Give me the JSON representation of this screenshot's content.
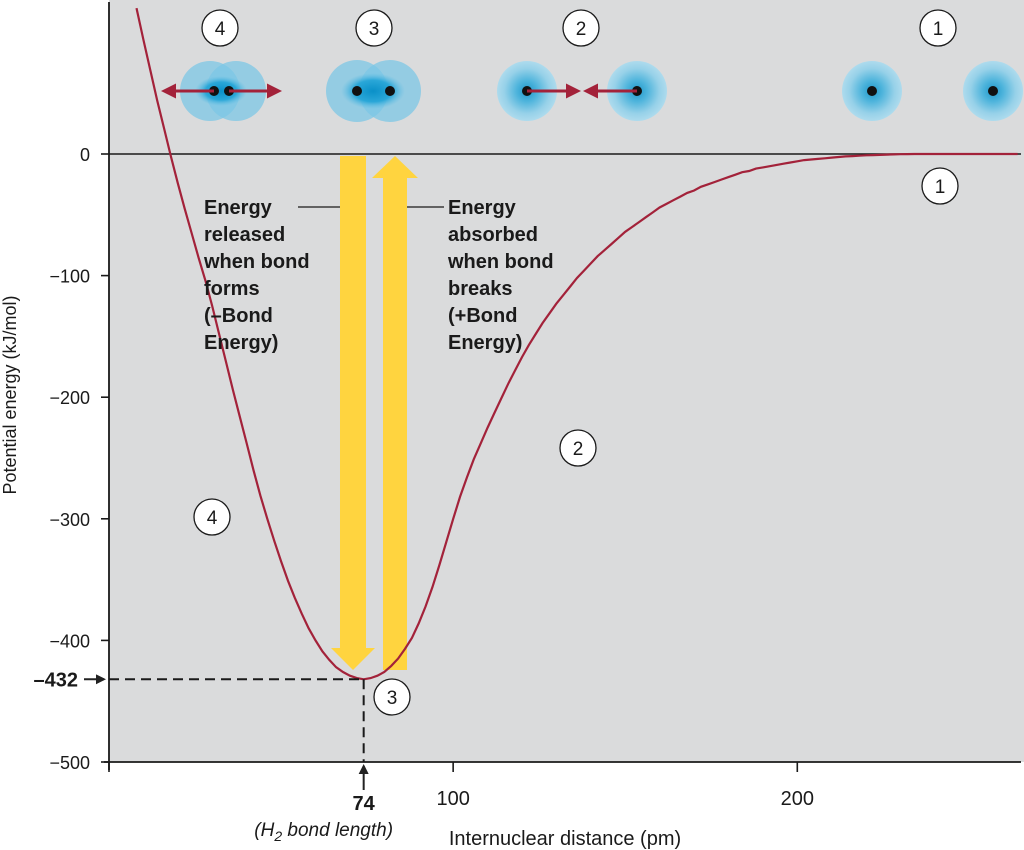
{
  "chart_data": {
    "type": "line",
    "title": "",
    "xlabel": "Internuclear distance (pm)",
    "ylabel": "Potential energy (kJ/mol)",
    "xlim": [
      0,
      265
    ],
    "ylim": [
      -500,
      120
    ],
    "x_ticks": [
      {
        "value": 100,
        "label": "100"
      },
      {
        "value": 200,
        "label": "200"
      }
    ],
    "y_ticks": [
      {
        "value": 0,
        "label": "0"
      },
      {
        "value": -100,
        "label": "−100"
      },
      {
        "value": -200,
        "label": "−200"
      },
      {
        "value": -300,
        "label": "−300"
      },
      {
        "value": -400,
        "label": "−400"
      },
      {
        "value": -500,
        "label": "−500"
      }
    ],
    "series": [
      {
        "color": "#a3223a",
        "x": [
          8,
          10,
          12,
          14,
          16,
          18,
          20,
          22,
          24,
          26,
          28,
          30,
          32,
          34,
          36,
          38,
          40,
          42,
          44,
          46,
          48,
          50,
          52,
          54,
          56,
          58,
          60,
          62,
          64,
          66,
          68,
          70,
          72,
          74,
          76,
          78,
          80,
          82,
          84,
          86,
          88,
          90,
          92,
          94,
          96,
          98,
          100,
          102,
          104,
          106,
          108,
          110,
          112,
          114,
          116,
          118,
          120,
          122,
          124,
          126,
          128,
          130,
          132,
          134,
          136,
          138,
          140,
          142,
          144,
          146,
          148,
          150,
          152,
          154,
          156,
          158,
          160,
          162,
          164,
          166,
          168,
          170,
          172,
          174,
          176,
          178,
          180,
          182,
          184,
          186,
          188,
          190,
          192,
          194,
          196,
          198,
          200,
          202,
          204,
          206,
          208,
          210,
          212,
          214,
          216,
          218,
          220,
          222,
          224,
          226,
          228,
          230,
          232,
          234,
          236,
          238,
          240,
          242,
          244,
          246,
          248,
          250,
          252,
          254,
          256,
          258,
          260,
          262,
          264
        ],
        "y": [
          120,
          94,
          69,
          44,
          21,
          -2,
          -24,
          -45,
          -65,
          -85,
          -104,
          -125,
          -148,
          -171,
          -194,
          -216,
          -238,
          -260,
          -281,
          -300,
          -318,
          -335,
          -351,
          -365,
          -378,
          -390,
          -400,
          -409,
          -416,
          -422,
          -426,
          -429,
          -431,
          -432,
          -431,
          -429,
          -426,
          -421,
          -415,
          -407,
          -398,
          -386,
          -372,
          -356,
          -338,
          -319,
          -300,
          -282,
          -266,
          -251,
          -238,
          -225,
          -213,
          -201,
          -189,
          -178,
          -167,
          -157,
          -148,
          -139,
          -131,
          -123,
          -116,
          -109,
          -102,
          -96,
          -90,
          -84,
          -79,
          -74,
          -69,
          -64,
          -60,
          -56,
          -52,
          -48,
          -44,
          -41,
          -38,
          -35,
          -32,
          -30,
          -27,
          -25,
          -23,
          -21,
          -19,
          -17,
          -15,
          -14,
          -12,
          -11,
          -10,
          -9,
          -8,
          -7,
          -6,
          -5,
          -4.5,
          -4,
          -3.5,
          -3,
          -2.5,
          -2,
          -1.7,
          -1.4,
          -1.1,
          -0.9,
          -0.7,
          -0.5,
          -0.3,
          -0.2,
          -0.1,
          0,
          0,
          0,
          0,
          0,
          0,
          0,
          0,
          0,
          0,
          0,
          0,
          0,
          0,
          0,
          0
        ]
      }
    ],
    "minimum": {
      "x": 74,
      "y": -432,
      "x_label": "74",
      "y_label": "–432",
      "x_note": "(H2 bond length)"
    },
    "arrows": {
      "released": {
        "direction": "down",
        "color": "#ffd43f",
        "lines": [
          "Energy",
          "released",
          "when bond",
          "forms",
          "(–Bond",
          "Energy)"
        ]
      },
      "absorbed": {
        "direction": "up",
        "color": "#ffd43f",
        "lines": [
          "Energy",
          "absorbed",
          "when bond",
          "breaks",
          "(+Bond",
          "Energy)"
        ]
      }
    },
    "curve_markers": [
      {
        "label": "1",
        "near_x": 240
      },
      {
        "label": "2",
        "near_x": 135
      },
      {
        "label": "3",
        "near_x": 82
      },
      {
        "label": "4",
        "near_x": 30
      }
    ],
    "atom_diagrams": [
      {
        "label": "4",
        "arrangement": "overlapping, pushed apart",
        "arrows": "outward"
      },
      {
        "label": "3",
        "arrangement": "overlapping at bond length",
        "arrows": "none"
      },
      {
        "label": "2",
        "arrangement": "approaching",
        "arrows": "inward"
      },
      {
        "label": "1",
        "arrangement": "far apart",
        "arrows": "none"
      }
    ],
    "colors": {
      "plot_background": "#dadbdc",
      "curve": "#a3223a",
      "arrow": "#ffd43f",
      "atom_cloud": "#7cc7e6",
      "atom_core": "#0a90c8"
    },
    "grid": false,
    "legend": "none"
  }
}
